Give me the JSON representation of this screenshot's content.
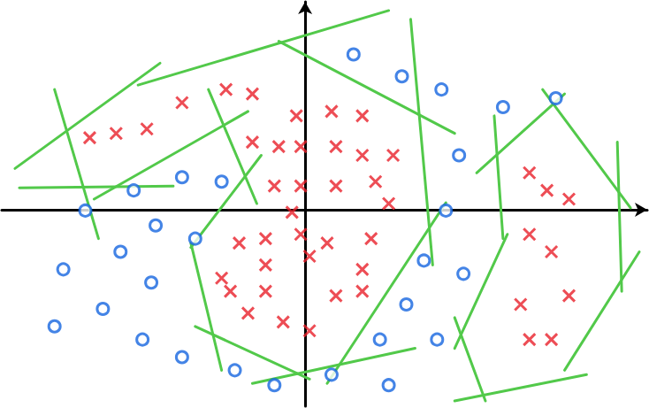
{
  "chart_data": {
    "type": "scatter",
    "grid": false,
    "tick_labels": false,
    "xlim": [
      -34.5,
      38.9
    ],
    "ylim": [
      -22.4,
      23.7
    ],
    "series": [
      {
        "type": "scatter",
        "marker": "x",
        "color": "#e8202a",
        "values": [
          [
            -24.5,
            8.2
          ],
          [
            -21.5,
            8.7
          ],
          [
            -18,
            9.2
          ],
          [
            -14,
            12.2
          ],
          [
            -9,
            13.7
          ],
          [
            -6,
            13.2
          ],
          [
            -1,
            10.7
          ],
          [
            3,
            11.2
          ],
          [
            6.5,
            10.7
          ],
          [
            -6,
            7.7
          ],
          [
            -3,
            7.2
          ],
          [
            -0.5,
            7.2
          ],
          [
            3.5,
            7.2
          ],
          [
            6.5,
            6.2
          ],
          [
            10,
            6.2
          ],
          [
            -3.5,
            2.7
          ],
          [
            -0.5,
            2.7
          ],
          [
            3.5,
            2.7
          ],
          [
            8,
            3.2
          ],
          [
            9.5,
            0.7
          ],
          [
            -1.5,
            -0.3
          ],
          [
            -7.5,
            -3.8
          ],
          [
            -4.5,
            -3.3
          ],
          [
            -0.5,
            -2.8
          ],
          [
            2.5,
            -3.8
          ],
          [
            7.5,
            -3.3
          ],
          [
            -9.5,
            -7.8
          ],
          [
            -4.5,
            -6.3
          ],
          [
            0.5,
            -5.3
          ],
          [
            6.5,
            -6.8
          ],
          [
            -8.5,
            -9.3
          ],
          [
            -4.5,
            -9.3
          ],
          [
            3.5,
            -9.8
          ],
          [
            6.5,
            -9.3
          ],
          [
            -6.5,
            -11.8
          ],
          [
            -2.5,
            -12.8
          ],
          [
            0.5,
            -13.8
          ],
          [
            25.5,
            4.2
          ],
          [
            27.5,
            2.2
          ],
          [
            30,
            1.2
          ],
          [
            25.5,
            -2.8
          ],
          [
            28,
            -4.8
          ],
          [
            30,
            -9.8
          ],
          [
            24.5,
            -10.8
          ],
          [
            25.5,
            -14.8
          ],
          [
            28,
            -14.8
          ]
        ]
      },
      {
        "type": "scatter",
        "marker": "o",
        "color": "#1565e0",
        "values": [
          [
            5.5,
            17.7
          ],
          [
            11,
            15.2
          ],
          [
            15.5,
            13.7
          ],
          [
            22.5,
            11.7
          ],
          [
            28.5,
            12.7
          ],
          [
            17.5,
            6.2
          ],
          [
            -14,
            3.7
          ],
          [
            -9.5,
            3.2
          ],
          [
            -19.5,
            2.2
          ],
          [
            -25,
            -0.1
          ],
          [
            16,
            -0.1
          ],
          [
            -17,
            -1.8
          ],
          [
            -21,
            -4.8
          ],
          [
            -12.5,
            -3.3
          ],
          [
            -27.5,
            -6.8
          ],
          [
            -17.5,
            -8.3
          ],
          [
            13.5,
            -5.8
          ],
          [
            18,
            -7.3
          ],
          [
            -23,
            -11.3
          ],
          [
            -28.5,
            -13.3
          ],
          [
            -18.5,
            -14.8
          ],
          [
            -14,
            -16.8
          ],
          [
            11.5,
            -10.8
          ],
          [
            8.5,
            -14.8
          ],
          [
            15,
            -14.8
          ],
          [
            -8,
            -18.3
          ],
          [
            -3.5,
            -20
          ],
          [
            3,
            -18.8
          ],
          [
            9.5,
            -20
          ]
        ]
      },
      {
        "type": "line",
        "line_style": "solid",
        "color": "#52c94a",
        "segments": [
          [
            [
              -33,
              4.7
            ],
            [
              -16.5,
              16.7
            ]
          ],
          [
            [
              -32.5,
              2.5
            ],
            [
              -15,
              2.7
            ]
          ],
          [
            [
              -28.5,
              13.7
            ],
            [
              -23.5,
              -3.3
            ]
          ],
          [
            [
              -24,
              1.2
            ],
            [
              -6.5,
              11.2
            ]
          ],
          [
            [
              -19,
              14.2
            ],
            [
              9.5,
              22.7
            ]
          ],
          [
            [
              -11,
              13.7
            ],
            [
              -5.5,
              0.7
            ]
          ],
          [
            [
              -3,
              19.2
            ],
            [
              17,
              8.7
            ]
          ],
          [
            [
              12,
              21.7
            ],
            [
              14.5,
              -6.3
            ]
          ],
          [
            [
              -13,
              -3.8
            ],
            [
              -9.5,
              -18.3
            ]
          ],
          [
            [
              -13,
              -4.3
            ],
            [
              -5,
              6.2
            ]
          ],
          [
            [
              -12.5,
              -13.3
            ],
            [
              0.5,
              -19.3
            ]
          ],
          [
            [
              -6,
              -19.8
            ],
            [
              12.5,
              -15.8
            ]
          ],
          [
            [
              2.5,
              -19.8
            ],
            [
              16,
              0.8
            ]
          ],
          [
            [
              19.5,
              4.2
            ],
            [
              29.5,
              13.2
            ]
          ],
          [
            [
              21.5,
              10.7
            ],
            [
              22.5,
              -3.3
            ]
          ],
          [
            [
              17,
              -15.8
            ],
            [
              23,
              -2.8
            ]
          ],
          [
            [
              17,
              -12.3
            ],
            [
              20.5,
              -21.8
            ]
          ],
          [
            [
              17,
              -21.8
            ],
            [
              32,
              -18.8
            ]
          ],
          [
            [
              27,
              13.7
            ],
            [
              37,
              0.2
            ]
          ],
          [
            [
              35.5,
              7.7
            ],
            [
              36,
              -9.3
            ]
          ],
          [
            [
              29.5,
              -18.3
            ],
            [
              38,
              -4.8
            ]
          ]
        ]
      }
    ]
  }
}
